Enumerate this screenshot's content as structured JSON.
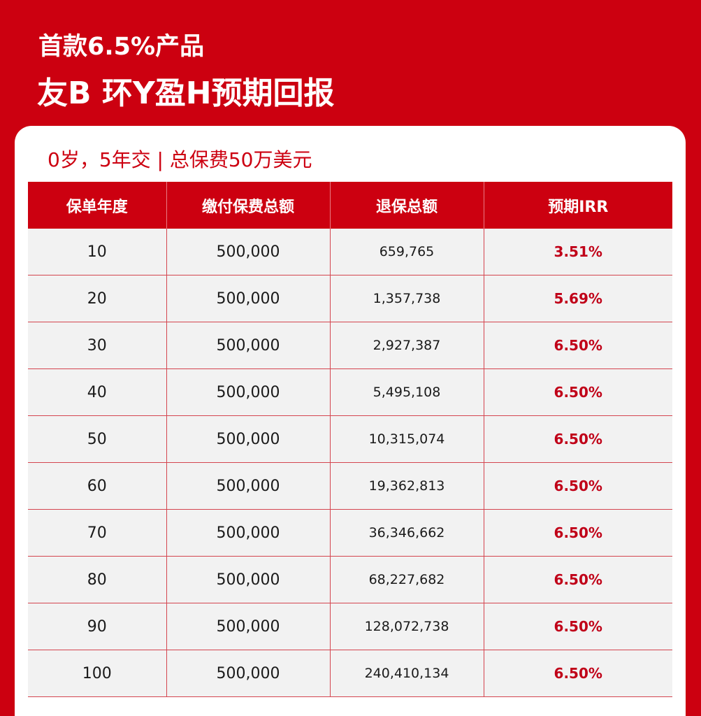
{
  "header": {
    "title_line1": "首款6.5%产品",
    "title_line2": "友B 环Y盈H预期回报"
  },
  "card": {
    "subtitle": "0岁，5年交 | 总保费50万美元"
  },
  "table": {
    "columns": [
      "保单年度",
      "缴付保费总额",
      "退保总额",
      "预期IRR"
    ],
    "rows": [
      {
        "year": "10",
        "paid": "500,000",
        "surrender": "659,765",
        "irr": "3.51%"
      },
      {
        "year": "20",
        "paid": "500,000",
        "surrender": "1,357,738",
        "irr": "5.69%"
      },
      {
        "year": "30",
        "paid": "500,000",
        "surrender": "2,927,387",
        "irr": "6.50%"
      },
      {
        "year": "40",
        "paid": "500,000",
        "surrender": "5,495,108",
        "irr": "6.50%"
      },
      {
        "year": "50",
        "paid": "500,000",
        "surrender": "10,315,074",
        "irr": "6.50%"
      },
      {
        "year": "60",
        "paid": "500,000",
        "surrender": "19,362,813",
        "irr": "6.50%"
      },
      {
        "year": "70",
        "paid": "500,000",
        "surrender": "36,346,662",
        "irr": "6.50%"
      },
      {
        "year": "80",
        "paid": "500,000",
        "surrender": "68,227,682",
        "irr": "6.50%"
      },
      {
        "year": "90",
        "paid": "500,000",
        "surrender": "128,072,738",
        "irr": "6.50%"
      },
      {
        "year": "100",
        "paid": "500,000",
        "surrender": "240,410,134",
        "irr": "6.50%"
      }
    ]
  },
  "colors": {
    "brand_red": "#cc0010",
    "irr_red": "#c00018",
    "row_bg": "#f2f2f2",
    "card_bg": "#ffffff"
  }
}
